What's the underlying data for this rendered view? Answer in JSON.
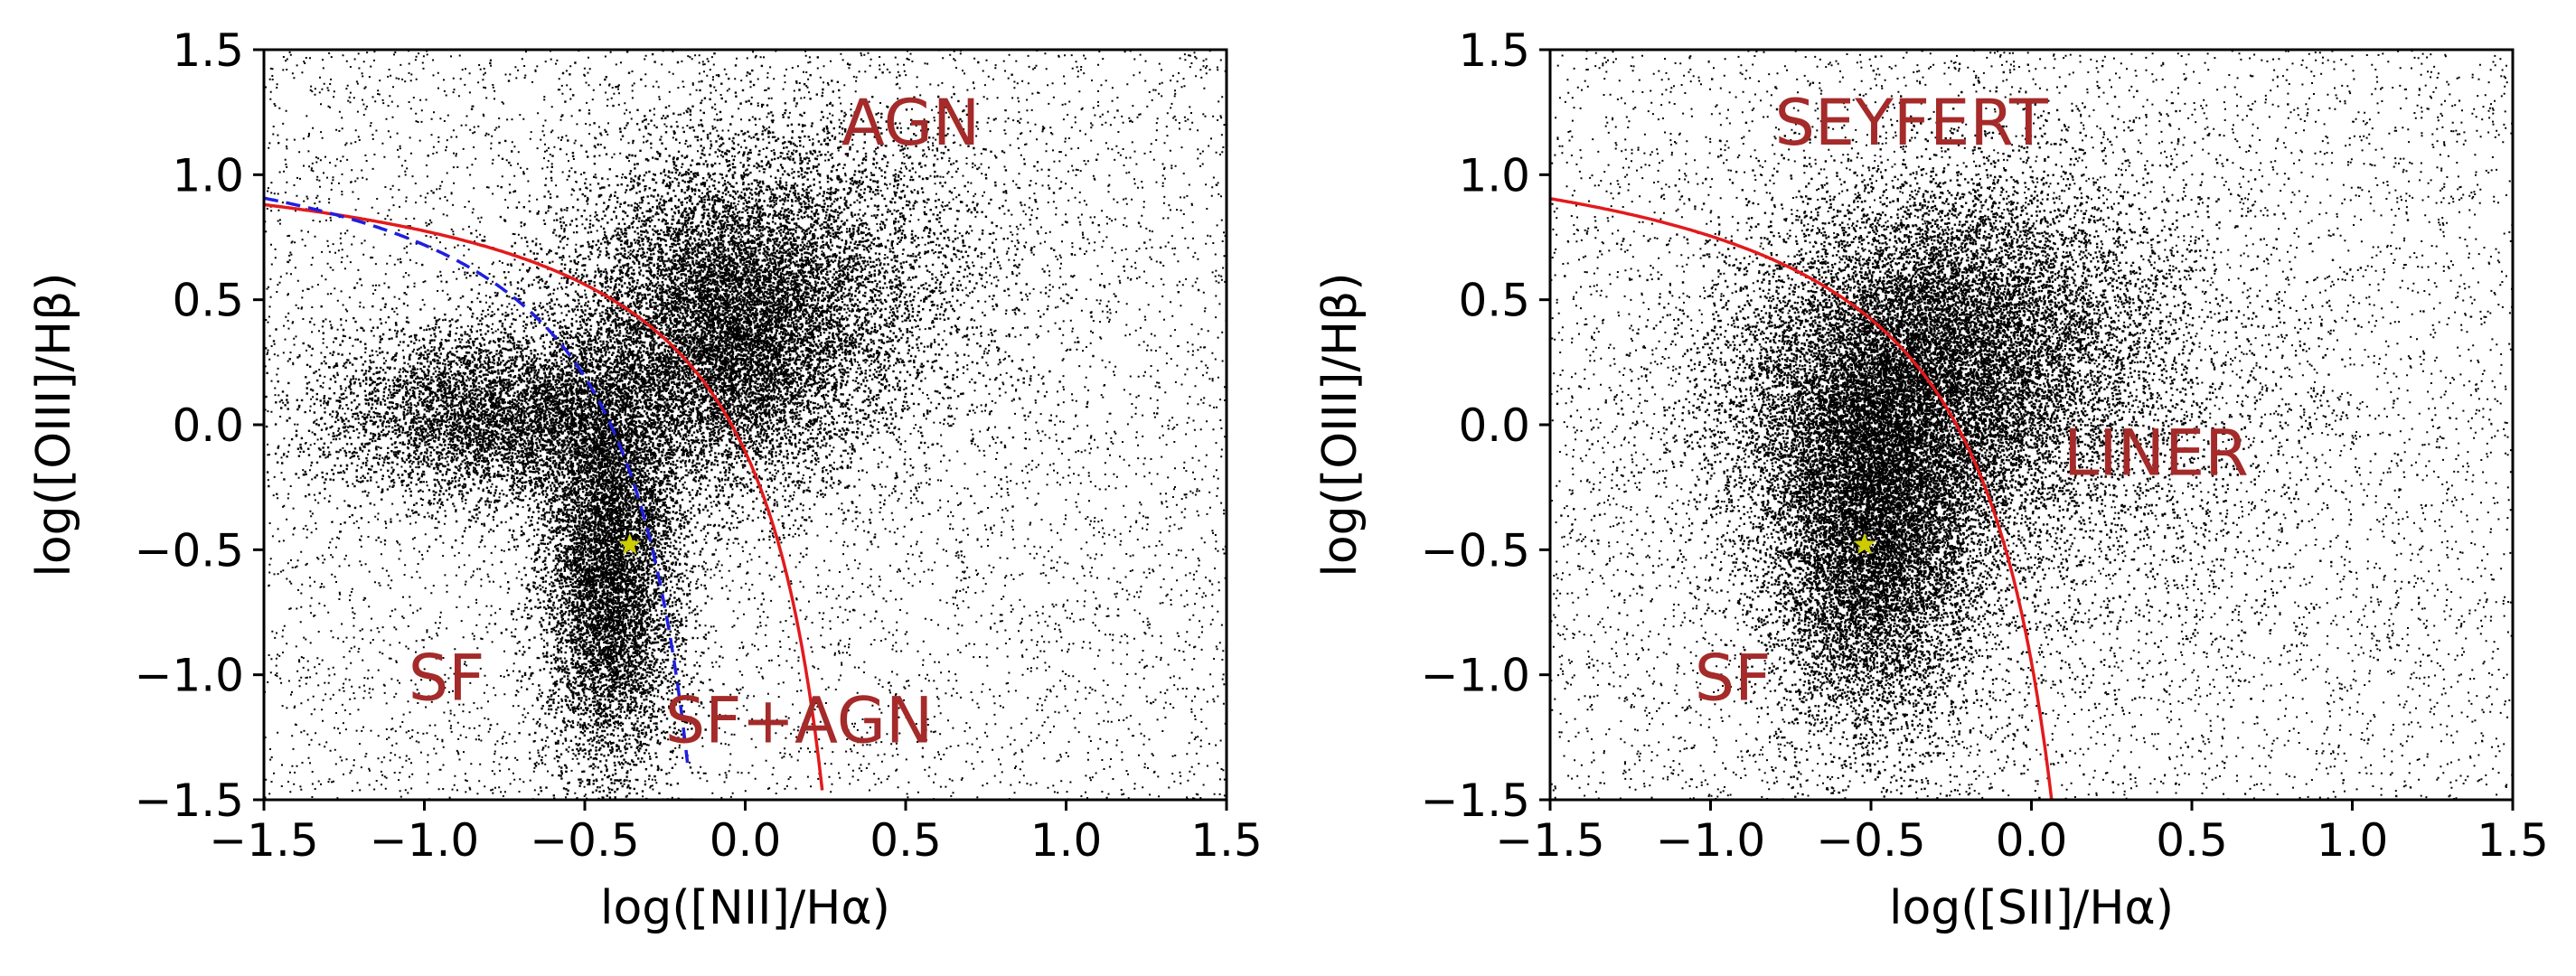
{
  "chart_data": [
    {
      "type": "scatter",
      "title": "",
      "xlabel": "log([NII]/Hα)",
      "ylabel": "log([OIII]/Hβ)",
      "xlim": [
        -1.5,
        1.5
      ],
      "ylim": [
        -1.5,
        1.5
      ],
      "xticks": [
        "−1.5",
        "−1.0",
        "−0.5",
        "0.0",
        "0.5",
        "1.0",
        "1.5"
      ],
      "yticks": [
        "−1.5",
        "−1.0",
        "−0.5",
        "0.0",
        "0.5",
        "1.0",
        "1.5"
      ],
      "grid": false,
      "point_color": "#000000",
      "density_clusters": [
        {
          "center": [
            -0.42,
            -0.55
          ],
          "spread": [
            0.11,
            0.42
          ],
          "weight": 0.3
        },
        {
          "center": [
            -0.75,
            0.05
          ],
          "spread": [
            0.28,
            0.18
          ],
          "weight": 0.22
        },
        {
          "center": [
            -0.05,
            0.35
          ],
          "spread": [
            0.22,
            0.3
          ],
          "weight": 0.3
        },
        {
          "center": [
            0.1,
            0.6
          ],
          "spread": [
            0.35,
            0.35
          ],
          "weight": 0.18
        }
      ],
      "curves": [
        {
          "style": "solid",
          "color": "#e31a1c",
          "equation": "0.61/(x-0.47)+1.19",
          "x_range": [
            -1.5,
            0.24
          ]
        },
        {
          "style": "dashed",
          "color": "#1f1fe0",
          "equation": "0.61/(x-0.05)+1.3",
          "x_range": [
            -1.5,
            -0.18
          ]
        }
      ],
      "marker": {
        "x": -0.36,
        "y": -0.48,
        "color": "#cccc00",
        "shape": "star"
      },
      "annotations": [
        {
          "text": "AGN",
          "x": 0.3,
          "y": 1.12
        },
        {
          "text": "SF",
          "x": -1.05,
          "y": -1.1
        },
        {
          "text": "SF+AGN",
          "x": -0.25,
          "y": -1.27
        }
      ],
      "annotation_color": "#a52a2a"
    },
    {
      "type": "scatter",
      "title": "",
      "xlabel": "log([SII]/Hα)",
      "ylabel": "log([OIII]/Hβ)",
      "xlim": [
        -1.5,
        1.5
      ],
      "ylim": [
        -1.5,
        1.5
      ],
      "xticks": [
        "−1.5",
        "−1.0",
        "−0.5",
        "0.0",
        "0.5",
        "1.0",
        "1.5"
      ],
      "yticks": [
        "−1.5",
        "−1.0",
        "−0.5",
        "0.0",
        "0.5",
        "1.0",
        "1.5"
      ],
      "grid": false,
      "point_color": "#000000",
      "density_clusters": [
        {
          "center": [
            -0.5,
            -0.45
          ],
          "spread": [
            0.16,
            0.38
          ],
          "weight": 0.35
        },
        {
          "center": [
            -0.4,
            0.1
          ],
          "spread": [
            0.28,
            0.3
          ],
          "weight": 0.3
        },
        {
          "center": [
            -0.2,
            0.45
          ],
          "spread": [
            0.3,
            0.3
          ],
          "weight": 0.2
        },
        {
          "center": [
            -0.1,
            0.0
          ],
          "spread": [
            0.45,
            0.5
          ],
          "weight": 0.15
        }
      ],
      "curves": [
        {
          "style": "solid",
          "color": "#e31a1c",
          "equation": "0.72/(x-0.32)+1.30",
          "x_range": [
            -1.5,
            0.07
          ]
        }
      ],
      "marker": {
        "x": -0.52,
        "y": -0.48,
        "color": "#cccc00",
        "shape": "star"
      },
      "annotations": [
        {
          "text": "SEYFERT",
          "x": -0.8,
          "y": 1.12
        },
        {
          "text": "LINER",
          "x": 0.1,
          "y": -0.2
        },
        {
          "text": "SF",
          "x": -1.05,
          "y": -1.1
        }
      ],
      "annotation_color": "#a52a2a"
    }
  ]
}
